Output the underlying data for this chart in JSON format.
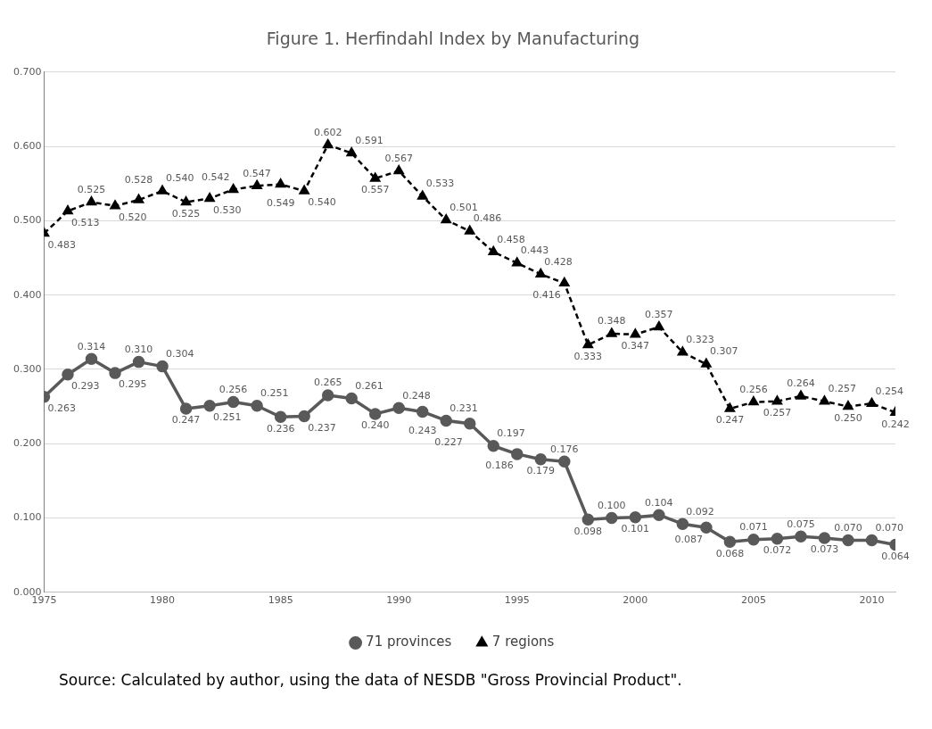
{
  "chart_data": {
    "type": "line",
    "title": "Figure 1. Herfindahl Index by Manufacturing",
    "x": [
      1975,
      1976,
      1977,
      1978,
      1979,
      1980,
      1981,
      1982,
      1983,
      1984,
      1985,
      1986,
      1987,
      1988,
      1989,
      1990,
      1991,
      1992,
      1993,
      1994,
      1995,
      1996,
      1997,
      1998,
      1999,
      2000,
      2001,
      2002,
      2003,
      2004,
      2005,
      2006,
      2007,
      2008,
      2009,
      2010,
      2011
    ],
    "series": [
      {
        "name": "71 provinces",
        "color": "#595959",
        "marker": "circle",
        "line_style": "solid",
        "values": [
          0.263,
          0.293,
          0.314,
          0.295,
          0.31,
          0.304,
          0.247,
          0.251,
          0.256,
          0.251,
          0.236,
          0.237,
          0.265,
          0.261,
          0.24,
          0.248,
          0.243,
          0.231,
          0.227,
          0.197,
          0.186,
          0.179,
          0.176,
          0.098,
          0.1,
          0.101,
          0.104,
          0.092,
          0.087,
          0.068,
          0.071,
          0.072,
          0.075,
          0.073,
          0.07,
          0.07,
          0.064
        ],
        "value_labels": [
          "0.263",
          "0.293",
          "0.314",
          "0.295",
          "0.310",
          "0.304",
          "0.247",
          "0.251",
          "0.256",
          "0.251",
          "0.236",
          "0.237",
          "0.265",
          "0.261",
          "0.240",
          "0.248",
          "0.243",
          "0.231",
          "0.227",
          "0.197",
          "0.186",
          "0.179",
          "0.176",
          "0.098",
          "0.100",
          "0.101",
          "0.104",
          "0.092",
          "0.087",
          "0.068",
          "0.071",
          "0.072",
          "0.075",
          "0.073",
          "0.070",
          "0.070",
          "0.064"
        ]
      },
      {
        "name": "7 regions",
        "color": "#000000",
        "marker": "triangle",
        "line_style": "dashed",
        "values": [
          0.483,
          0.513,
          0.525,
          0.52,
          0.528,
          0.54,
          0.525,
          0.53,
          0.542,
          0.547,
          0.549,
          0.54,
          0.602,
          0.591,
          0.557,
          0.567,
          0.533,
          0.501,
          0.486,
          0.458,
          0.443,
          0.428,
          0.416,
          0.333,
          0.348,
          0.347,
          0.357,
          0.323,
          0.307,
          0.247,
          0.256,
          0.257,
          0.264,
          0.257,
          0.25,
          0.254,
          0.242
        ],
        "value_labels": [
          "0.483",
          "0.513",
          "0.525",
          "0.520",
          "0.528",
          "0.540",
          "0.525",
          "0.530",
          "0.542",
          "0.547",
          "0.549",
          "0.540",
          "0.602",
          "0.591",
          "0.557",
          "0.567",
          "0.533",
          "0.501",
          "0.486",
          "0.458",
          "0.443",
          "0.428",
          "0.416",
          "0.333",
          "0.348",
          "0.347",
          "0.357",
          "0.323",
          "0.307",
          "0.247",
          "0.256",
          "0.257",
          "0.264",
          "0.257",
          "0.250",
          "0.254",
          "0.242"
        ]
      }
    ],
    "xlim": [
      1975,
      2011
    ],
    "xticks": [
      1975,
      1980,
      1985,
      1990,
      1995,
      2000,
      2005,
      2010
    ],
    "ylim": [
      0,
      0.7
    ],
    "yticks": [
      {
        "value": 0,
        "label": "0.000"
      },
      {
        "value": 0.1,
        "label": "0.100"
      },
      {
        "value": 0.2,
        "label": "0.200"
      },
      {
        "value": 0.3,
        "label": "0.300"
      },
      {
        "value": 0.4,
        "label": "0.400"
      },
      {
        "value": 0.5,
        "label": "0.500"
      },
      {
        "value": 0.6,
        "label": "0.600"
      },
      {
        "value": 0.7,
        "label": "0.700"
      }
    ],
    "grid": "y",
    "legend": "bottom",
    "annotations": [
      "Source: Calculated by author, using the data of NESDB \"Gross Provincial Product\"."
    ]
  }
}
